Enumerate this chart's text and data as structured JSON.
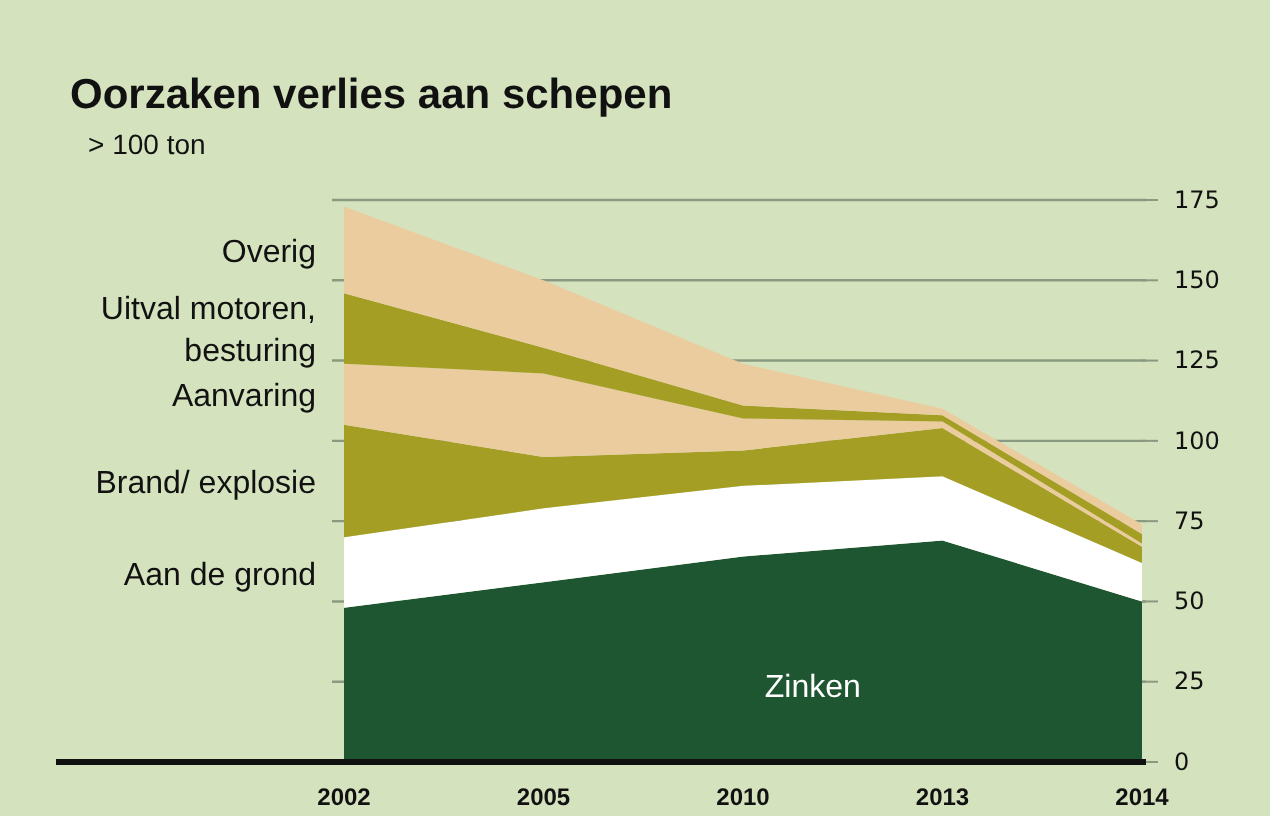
{
  "chart_data": {
    "type": "area",
    "stacked": true,
    "title": "Oorzaken verlies aan schepen",
    "subtitle": "> 100 ton",
    "categories": [
      "2002",
      "2005",
      "2010",
      "2013",
      "2014"
    ],
    "ylim": [
      0,
      175
    ],
    "yticks": [
      0,
      25,
      50,
      75,
      100,
      125,
      150,
      175
    ],
    "grid": "y",
    "series": [
      {
        "name": "Zinken",
        "color": "#1e5632",
        "values": [
          48,
          56,
          64,
          69,
          50
        ]
      },
      {
        "name": "Aan de grond",
        "color": "#ffffff",
        "values": [
          22,
          23,
          22,
          20,
          12
        ]
      },
      {
        "name": "Brand/ explosie",
        "color": "#a59e25",
        "values": [
          35,
          16,
          11,
          15,
          5
        ]
      },
      {
        "name": "Aanvaring",
        "color": "#ebcc9f",
        "values": [
          19,
          26,
          10,
          2,
          1
        ]
      },
      {
        "name": "Uitval motoren, besturing",
        "color": "#a59e25",
        "values": [
          22,
          8,
          4,
          2,
          3
        ]
      },
      {
        "name": "Overig",
        "color": "#ebcc9f",
        "values": [
          27,
          21,
          13,
          2,
          3
        ]
      }
    ]
  }
}
